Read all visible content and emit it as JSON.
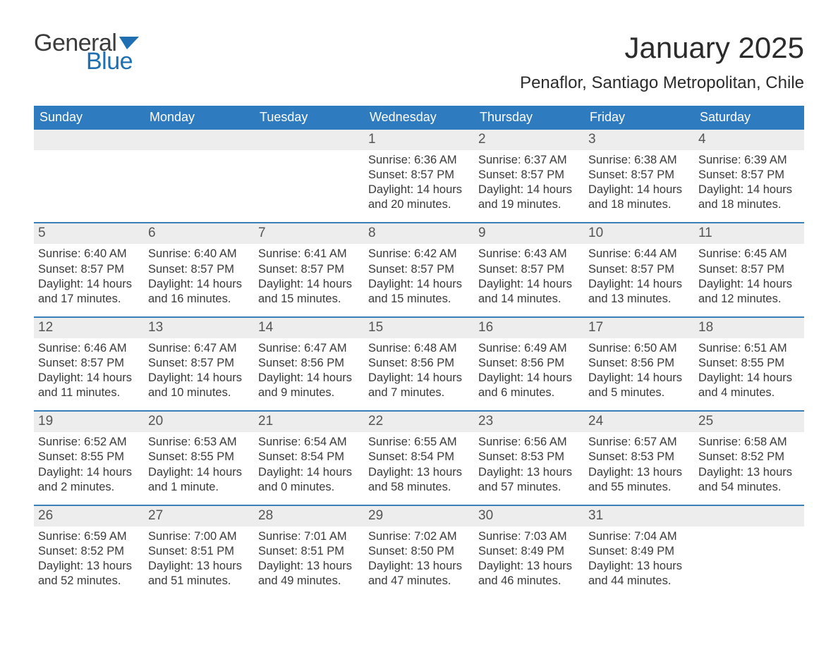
{
  "brand": {
    "word1": "General",
    "word2": "Blue",
    "flag_color": "#1f6fb2"
  },
  "title": "January 2025",
  "location": "Penaflor, Santiago Metropolitan, Chile",
  "colors": {
    "header_bg": "#2f7bbf",
    "header_text": "#ffffff",
    "band_bg": "#ededed",
    "week_divider": "#3a7fb8",
    "body_text": "#3a3a3a",
    "page_bg": "#ffffff"
  },
  "days_of_week": [
    "Sunday",
    "Monday",
    "Tuesday",
    "Wednesday",
    "Thursday",
    "Friday",
    "Saturday"
  ],
  "weeks": [
    [
      {
        "n": "",
        "sunrise": "",
        "sunset": "",
        "daylight": ""
      },
      {
        "n": "",
        "sunrise": "",
        "sunset": "",
        "daylight": ""
      },
      {
        "n": "",
        "sunrise": "",
        "sunset": "",
        "daylight": ""
      },
      {
        "n": "1",
        "sunrise": "Sunrise: 6:36 AM",
        "sunset": "Sunset: 8:57 PM",
        "daylight": "Daylight: 14 hours and 20 minutes."
      },
      {
        "n": "2",
        "sunrise": "Sunrise: 6:37 AM",
        "sunset": "Sunset: 8:57 PM",
        "daylight": "Daylight: 14 hours and 19 minutes."
      },
      {
        "n": "3",
        "sunrise": "Sunrise: 6:38 AM",
        "sunset": "Sunset: 8:57 PM",
        "daylight": "Daylight: 14 hours and 18 minutes."
      },
      {
        "n": "4",
        "sunrise": "Sunrise: 6:39 AM",
        "sunset": "Sunset: 8:57 PM",
        "daylight": "Daylight: 14 hours and 18 minutes."
      }
    ],
    [
      {
        "n": "5",
        "sunrise": "Sunrise: 6:40 AM",
        "sunset": "Sunset: 8:57 PM",
        "daylight": "Daylight: 14 hours and 17 minutes."
      },
      {
        "n": "6",
        "sunrise": "Sunrise: 6:40 AM",
        "sunset": "Sunset: 8:57 PM",
        "daylight": "Daylight: 14 hours and 16 minutes."
      },
      {
        "n": "7",
        "sunrise": "Sunrise: 6:41 AM",
        "sunset": "Sunset: 8:57 PM",
        "daylight": "Daylight: 14 hours and 15 minutes."
      },
      {
        "n": "8",
        "sunrise": "Sunrise: 6:42 AM",
        "sunset": "Sunset: 8:57 PM",
        "daylight": "Daylight: 14 hours and 15 minutes."
      },
      {
        "n": "9",
        "sunrise": "Sunrise: 6:43 AM",
        "sunset": "Sunset: 8:57 PM",
        "daylight": "Daylight: 14 hours and 14 minutes."
      },
      {
        "n": "10",
        "sunrise": "Sunrise: 6:44 AM",
        "sunset": "Sunset: 8:57 PM",
        "daylight": "Daylight: 14 hours and 13 minutes."
      },
      {
        "n": "11",
        "sunrise": "Sunrise: 6:45 AM",
        "sunset": "Sunset: 8:57 PM",
        "daylight": "Daylight: 14 hours and 12 minutes."
      }
    ],
    [
      {
        "n": "12",
        "sunrise": "Sunrise: 6:46 AM",
        "sunset": "Sunset: 8:57 PM",
        "daylight": "Daylight: 14 hours and 11 minutes."
      },
      {
        "n": "13",
        "sunrise": "Sunrise: 6:47 AM",
        "sunset": "Sunset: 8:57 PM",
        "daylight": "Daylight: 14 hours and 10 minutes."
      },
      {
        "n": "14",
        "sunrise": "Sunrise: 6:47 AM",
        "sunset": "Sunset: 8:56 PM",
        "daylight": "Daylight: 14 hours and 9 minutes."
      },
      {
        "n": "15",
        "sunrise": "Sunrise: 6:48 AM",
        "sunset": "Sunset: 8:56 PM",
        "daylight": "Daylight: 14 hours and 7 minutes."
      },
      {
        "n": "16",
        "sunrise": "Sunrise: 6:49 AM",
        "sunset": "Sunset: 8:56 PM",
        "daylight": "Daylight: 14 hours and 6 minutes."
      },
      {
        "n": "17",
        "sunrise": "Sunrise: 6:50 AM",
        "sunset": "Sunset: 8:56 PM",
        "daylight": "Daylight: 14 hours and 5 minutes."
      },
      {
        "n": "18",
        "sunrise": "Sunrise: 6:51 AM",
        "sunset": "Sunset: 8:55 PM",
        "daylight": "Daylight: 14 hours and 4 minutes."
      }
    ],
    [
      {
        "n": "19",
        "sunrise": "Sunrise: 6:52 AM",
        "sunset": "Sunset: 8:55 PM",
        "daylight": "Daylight: 14 hours and 2 minutes."
      },
      {
        "n": "20",
        "sunrise": "Sunrise: 6:53 AM",
        "sunset": "Sunset: 8:55 PM",
        "daylight": "Daylight: 14 hours and 1 minute."
      },
      {
        "n": "21",
        "sunrise": "Sunrise: 6:54 AM",
        "sunset": "Sunset: 8:54 PM",
        "daylight": "Daylight: 14 hours and 0 minutes."
      },
      {
        "n": "22",
        "sunrise": "Sunrise: 6:55 AM",
        "sunset": "Sunset: 8:54 PM",
        "daylight": "Daylight: 13 hours and 58 minutes."
      },
      {
        "n": "23",
        "sunrise": "Sunrise: 6:56 AM",
        "sunset": "Sunset: 8:53 PM",
        "daylight": "Daylight: 13 hours and 57 minutes."
      },
      {
        "n": "24",
        "sunrise": "Sunrise: 6:57 AM",
        "sunset": "Sunset: 8:53 PM",
        "daylight": "Daylight: 13 hours and 55 minutes."
      },
      {
        "n": "25",
        "sunrise": "Sunrise: 6:58 AM",
        "sunset": "Sunset: 8:52 PM",
        "daylight": "Daylight: 13 hours and 54 minutes."
      }
    ],
    [
      {
        "n": "26",
        "sunrise": "Sunrise: 6:59 AM",
        "sunset": "Sunset: 8:52 PM",
        "daylight": "Daylight: 13 hours and 52 minutes."
      },
      {
        "n": "27",
        "sunrise": "Sunrise: 7:00 AM",
        "sunset": "Sunset: 8:51 PM",
        "daylight": "Daylight: 13 hours and 51 minutes."
      },
      {
        "n": "28",
        "sunrise": "Sunrise: 7:01 AM",
        "sunset": "Sunset: 8:51 PM",
        "daylight": "Daylight: 13 hours and 49 minutes."
      },
      {
        "n": "29",
        "sunrise": "Sunrise: 7:02 AM",
        "sunset": "Sunset: 8:50 PM",
        "daylight": "Daylight: 13 hours and 47 minutes."
      },
      {
        "n": "30",
        "sunrise": "Sunrise: 7:03 AM",
        "sunset": "Sunset: 8:49 PM",
        "daylight": "Daylight: 13 hours and 46 minutes."
      },
      {
        "n": "31",
        "sunrise": "Sunrise: 7:04 AM",
        "sunset": "Sunset: 8:49 PM",
        "daylight": "Daylight: 13 hours and 44 minutes."
      },
      {
        "n": "",
        "sunrise": "",
        "sunset": "",
        "daylight": ""
      }
    ]
  ]
}
